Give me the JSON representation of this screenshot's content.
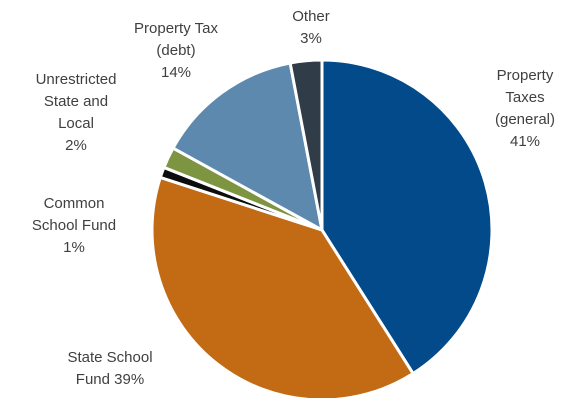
{
  "chart_data": {
    "type": "pie",
    "slices": [
      {
        "label": [
          "Property",
          "Taxes",
          "(general)",
          "41%"
        ],
        "value": 41,
        "color": "#024a8a"
      },
      {
        "label": [
          "State School",
          "Fund 39%"
        ],
        "value": 39,
        "color": "#c36a14"
      },
      {
        "label": [
          "Common",
          "School Fund",
          "1%"
        ],
        "value": 1,
        "color": "#0d0d0d"
      },
      {
        "label": [
          "Unrestricted",
          "State and",
          "Local",
          "2%"
        ],
        "value": 2,
        "color": "#7d9441"
      },
      {
        "label": [
          "Property Tax",
          "(debt)",
          "14%"
        ],
        "value": 14,
        "color": "#5d89ae"
      },
      {
        "label": [
          "Other",
          "3%"
        ],
        "value": 3,
        "color": "#303c48"
      }
    ],
    "legend": "none"
  }
}
